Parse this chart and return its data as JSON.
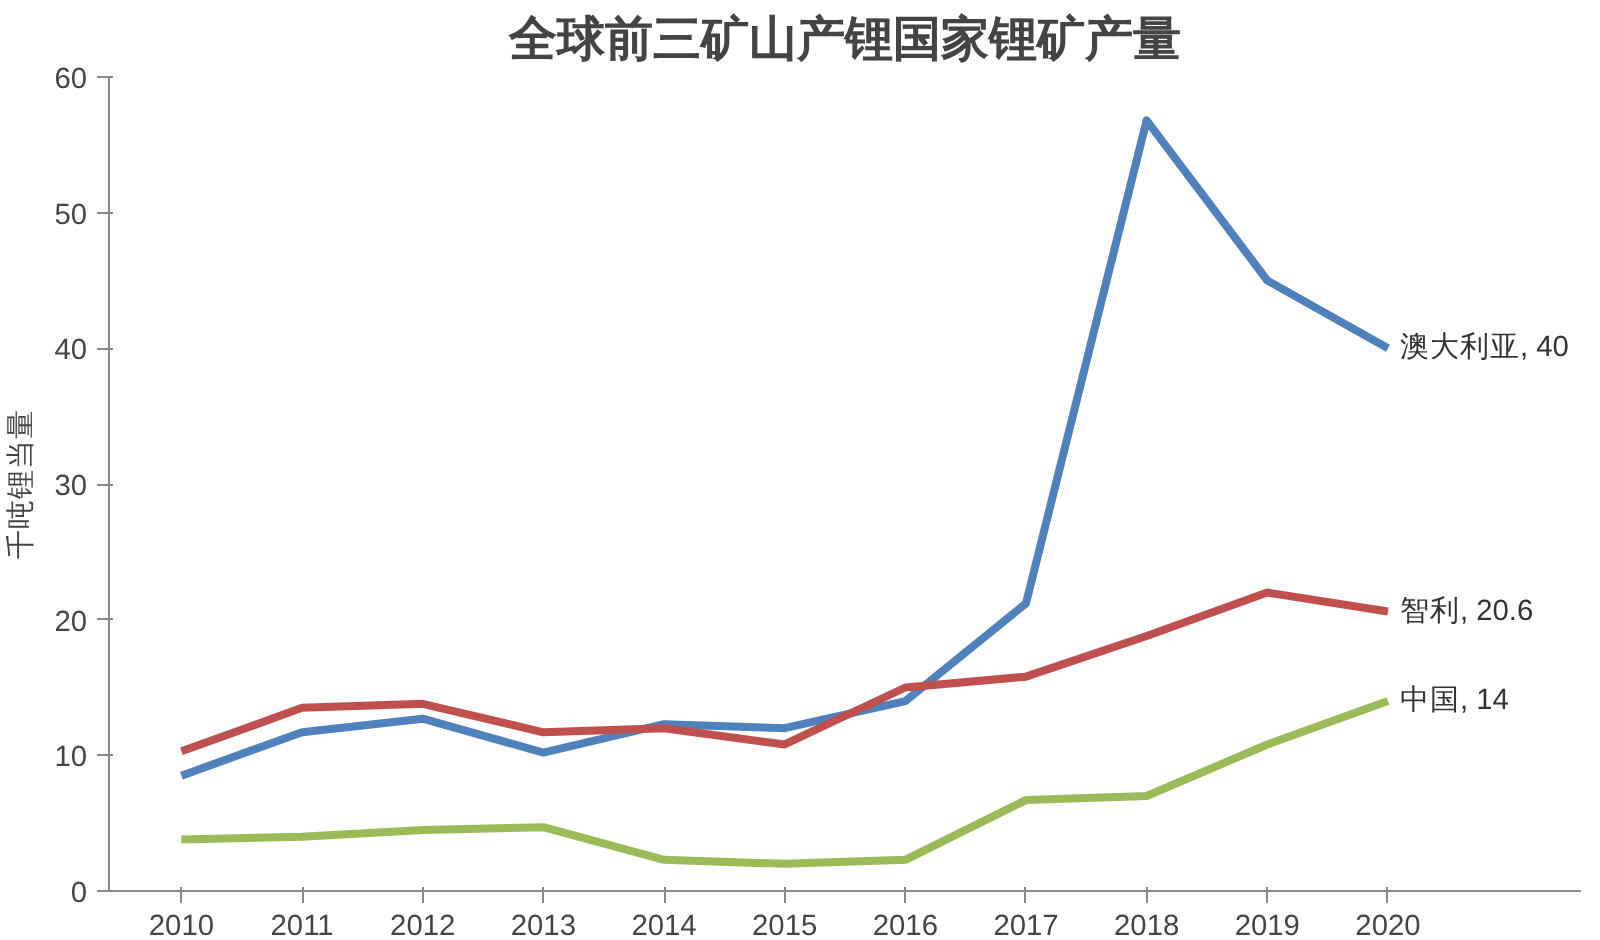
{
  "chart_data": {
    "type": "line",
    "title": "全球前三矿山产锂国家锂矿产量",
    "ylabel": "千吨锂当量",
    "categories": [
      "2010",
      "2011",
      "2012",
      "2013",
      "2014",
      "2015",
      "2016",
      "2017",
      "2018",
      "2019",
      "2020"
    ],
    "ylim": [
      0,
      60
    ],
    "yticks": [
      0,
      10,
      20,
      30,
      40,
      50,
      60
    ],
    "grid": false,
    "marker": "none",
    "line_style": "solid",
    "series": [
      {
        "color": "#4f81bd",
        "values": [
          8.5,
          11.7,
          12.7,
          10.2,
          12.3,
          12,
          14,
          21.2,
          56.8,
          45,
          40
        ]
      },
      {
        "color": "#c0504d",
        "values": [
          10.3,
          13.5,
          13.8,
          11.7,
          12,
          10.8,
          15,
          15.8,
          18.8,
          22,
          20.6
        ]
      },
      {
        "color": "#9bbb59",
        "values": [
          3.8,
          4,
          4.5,
          4.7,
          2.3,
          2,
          2.3,
          6.7,
          7,
          10.8,
          14
        ]
      }
    ],
    "annotations": [
      {
        "text": "澳大利亚, 40",
        "x": "2020",
        "y": 40
      },
      {
        "text": "智利, 20.6",
        "x": "2020",
        "y": 20.6
      },
      {
        "text": "中国, 14",
        "x": "2020",
        "y": 14
      }
    ]
  }
}
